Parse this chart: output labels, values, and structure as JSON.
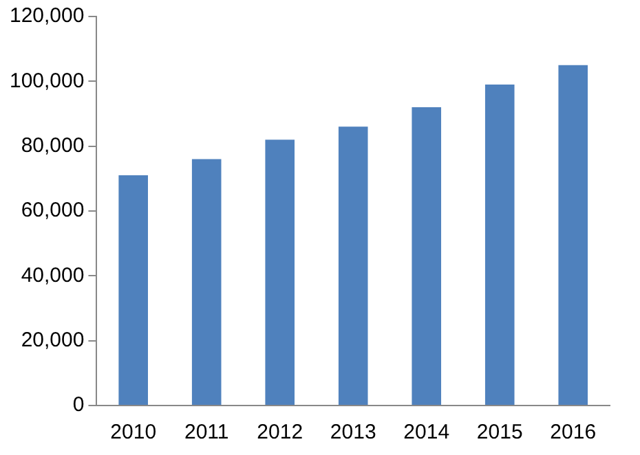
{
  "chart_data": {
    "type": "bar",
    "categories": [
      "2010",
      "2011",
      "2012",
      "2013",
      "2014",
      "2015",
      "2016"
    ],
    "values": [
      71000,
      76000,
      82000,
      86000,
      92000,
      99000,
      105000
    ],
    "color": "#4f81bd",
    "ylim": [
      0,
      120000
    ],
    "yticks": [
      0,
      {
        "value": 20000,
        "label": "20,000"
      },
      {
        "value": 40000,
        "label": "40,000"
      },
      {
        "value": 60000,
        "label": "60,000"
      },
      {
        "value": 80000,
        "label": "80,000"
      },
      {
        "value": 100000,
        "label": "100,000"
      },
      {
        "value": 120000,
        "label": "120,000"
      }
    ],
    "grid": false,
    "legend": false
  }
}
